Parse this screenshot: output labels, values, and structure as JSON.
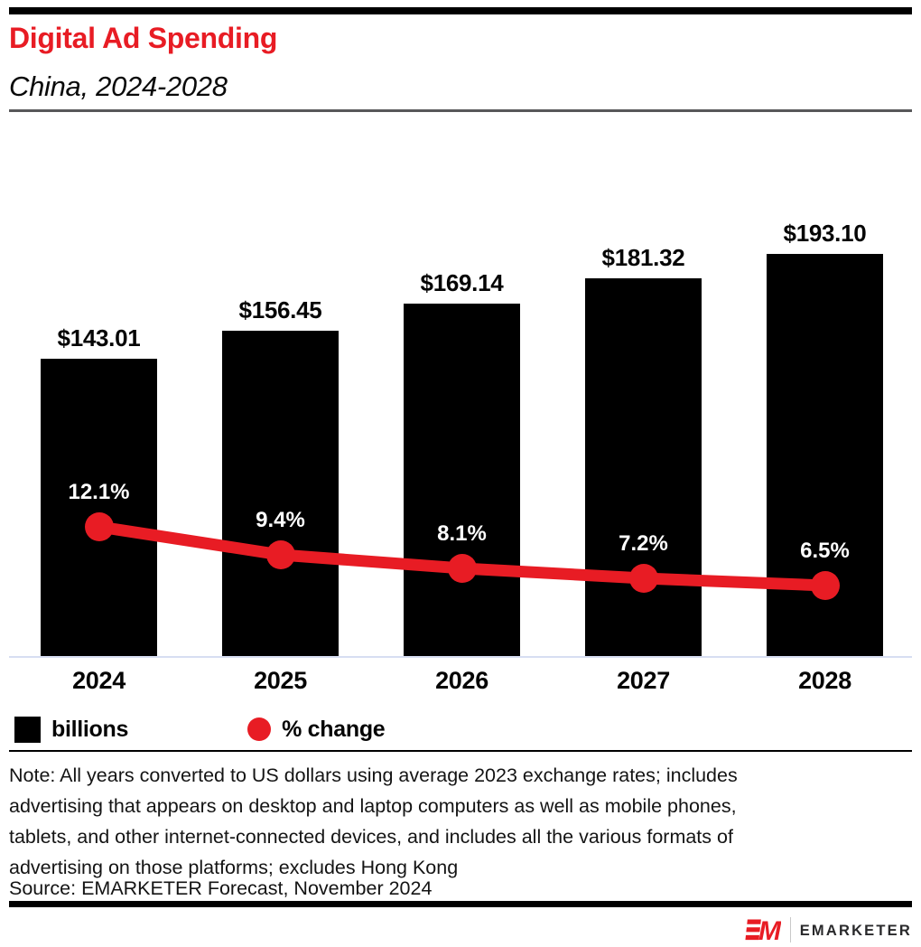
{
  "header": {
    "title": "Digital Ad Spending",
    "subtitle": "China, 2024-2028"
  },
  "chart_data": {
    "type": "bar",
    "title": "Digital Ad Spending, China, 2024-2028",
    "categories": [
      "2024",
      "2025",
      "2026",
      "2027",
      "2028"
    ],
    "series": [
      {
        "name": "billions",
        "type": "bar",
        "unit": "US$ billions",
        "values": [
          143.01,
          156.45,
          169.14,
          181.32,
          193.1
        ],
        "labels": [
          "$143.01",
          "$156.45",
          "$169.14",
          "$181.32",
          "$193.10"
        ],
        "color": "#000000"
      },
      {
        "name": "% change",
        "type": "line",
        "unit": "percent",
        "values": [
          12.1,
          9.4,
          8.1,
          7.2,
          6.5
        ],
        "labels": [
          "12.1%",
          "9.4%",
          "8.1%",
          "7.2%",
          "6.5%"
        ],
        "color": "#e81c24"
      }
    ],
    "legend": [
      {
        "label": "billions",
        "swatch": "square",
        "color": "#000000"
      },
      {
        "label": "% change",
        "swatch": "circle",
        "color": "#e81c24"
      }
    ],
    "legend_position": "bottom-left",
    "grid": false,
    "value_labels_shown": true
  },
  "colors": {
    "accent_red": "#e81c24",
    "bar_black": "#000000",
    "axis_line": "#d7def2"
  },
  "note_lines": [
    "Note: All years converted to US dollars using average 2023 exchange rates; includes",
    "advertising that appears on desktop and laptop computers as well as mobile phones,",
    "tablets, and other internet-connected devices, and includes all the various formats of",
    "advertising on those platforms; excludes Hong Kong"
  ],
  "source": "Source: EMARKETER Forecast, November 2024",
  "footer": {
    "logo_text": "EMARKETER"
  }
}
